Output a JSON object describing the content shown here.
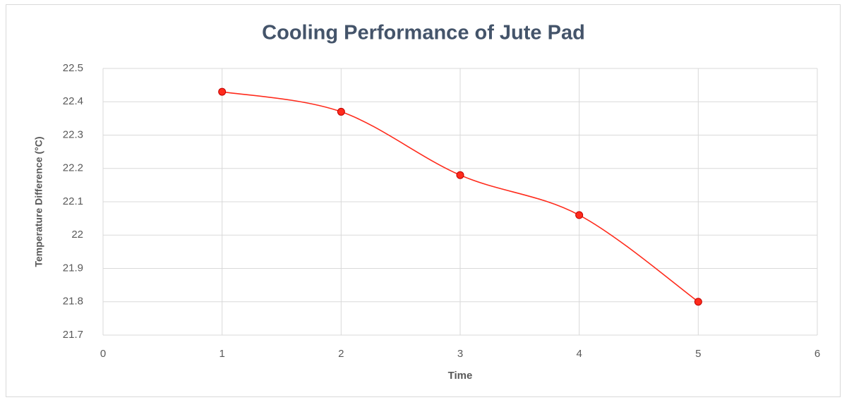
{
  "chart_data": {
    "type": "line",
    "title": "Cooling Performance of Jute Pad",
    "x_label": "Time",
    "y_label": "Temperature Difference (°C)",
    "x": [
      1,
      2,
      3,
      4,
      5
    ],
    "series": [
      {
        "name": "Temperature Difference",
        "color": "#ff2b1c",
        "values": [
          22.43,
          22.37,
          22.18,
          22.06,
          21.8
        ]
      }
    ],
    "xlim": [
      0,
      6
    ],
    "xticks": [
      0,
      1,
      2,
      3,
      4,
      5,
      6
    ],
    "ylim": [
      21.7,
      22.5
    ],
    "yticks": [
      21.7,
      21.8,
      21.9,
      22,
      22.1,
      22.2,
      22.3,
      22.4,
      22.5
    ],
    "grid": true,
    "smooth": true
  }
}
